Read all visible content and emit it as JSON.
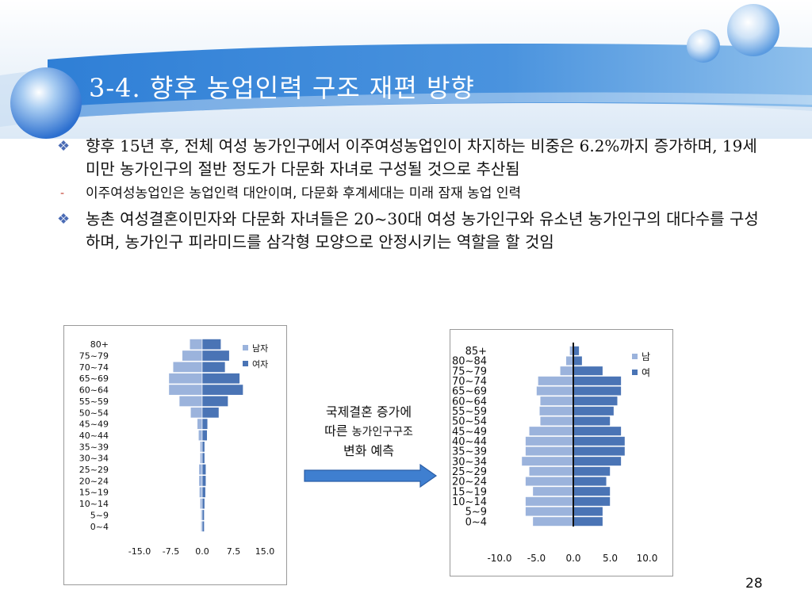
{
  "slide": {
    "title": "3-4. 향후 농업인력 구조 재편 방향",
    "page_number": "28"
  },
  "bullets": [
    {
      "marker": "❖",
      "text": "향후 15년 후, 전체 여성 농가인구에서 이주여성농업인이 차지하는 비중은 6.2%까지 증가하며, 19세 미만 농가인구의 절반 정도가 다문화 자녀로 구성될 것으로 추산됨"
    },
    {
      "marker": "-",
      "text": "이주여성농업인은 농업인력 대안이며, 다문화 후계세대는 미래 잠재 농업 인력"
    },
    {
      "marker": "❖",
      "text": "농촌 여성결혼이민자와 다문화 자녀들은 20~30대 여성 농가인구와 유소년 농가인구의 대다수를 구성하며, 농가인구 피라미드를 삼각형 모양으로 안정시키는 역할을 할 것임"
    }
  ],
  "callout": {
    "line1": "국제결혼 증가에",
    "line2a": "따른",
    "line2b": "농가인구구조",
    "line3": "변화 예측"
  },
  "colors": {
    "male": "#9bb3dc",
    "female": "#4a74b5",
    "bar_edge": "#ffffff",
    "banner_light": "#e8f1fa",
    "banner_blue": "#4f93db",
    "arrow": "#3f7fd0"
  },
  "chart_data": [
    {
      "type": "bar",
      "orientation": "horizontal-pyramid",
      "categories": [
        "80+",
        "75~79",
        "70~74",
        "65~69",
        "60~64",
        "55~59",
        "50~54",
        "45~49",
        "40~44",
        "35~39",
        "30~34",
        "25~29",
        "20~24",
        "15~19",
        "10~14",
        "5~9",
        "0~4"
      ],
      "series": [
        {
          "name": "남자",
          "values": [
            -3.0,
            -4.8,
            -7.0,
            -8.0,
            -8.0,
            -5.5,
            -2.8,
            -1.2,
            -0.9,
            -0.5,
            -0.5,
            -0.8,
            -0.8,
            -0.7,
            -0.5,
            -0.3,
            -0.3
          ]
        },
        {
          "name": "여자",
          "values": [
            4.5,
            6.5,
            5.5,
            9.0,
            9.8,
            6.2,
            4.0,
            1.3,
            1.2,
            0.6,
            0.6,
            0.9,
            0.9,
            0.8,
            0.6,
            0.5,
            0.5
          ]
        }
      ],
      "xticks": [
        "-15.0",
        "-7.5",
        "0.0",
        "7.5",
        "15.0"
      ],
      "xlim": [
        -15,
        15
      ],
      "legend_position": "top-right"
    },
    {
      "type": "bar",
      "orientation": "horizontal-pyramid",
      "categories": [
        "85+",
        "80~84",
        "75~79",
        "70~74",
        "65~69",
        "60~64",
        "55~59",
        "50~54",
        "45~49",
        "40~44",
        "35~39",
        "30~34",
        "25~29",
        "20~24",
        "15~19",
        "10~14",
        "5~9",
        "0~4"
      ],
      "series": [
        {
          "name": "남",
          "values": [
            -0.5,
            -1.0,
            -1.8,
            -4.8,
            -5.0,
            -4.5,
            -4.6,
            -4.5,
            -6.0,
            -6.5,
            -6.5,
            -7.0,
            -6.0,
            -6.5,
            -5.5,
            -6.5,
            -6.5,
            -5.5
          ]
        },
        {
          "name": "여",
          "values": [
            0.8,
            1.2,
            4.0,
            6.5,
            6.5,
            6.0,
            5.5,
            5.0,
            6.5,
            7.0,
            7.0,
            6.5,
            5.0,
            4.5,
            5.0,
            5.0,
            4.0,
            4.0
          ]
        }
      ],
      "xticks": [
        "-10.0",
        "-5.0",
        "0.0",
        "5.0",
        "10.0"
      ],
      "xlim": [
        -10,
        10
      ],
      "legend_position": "top-right"
    }
  ]
}
